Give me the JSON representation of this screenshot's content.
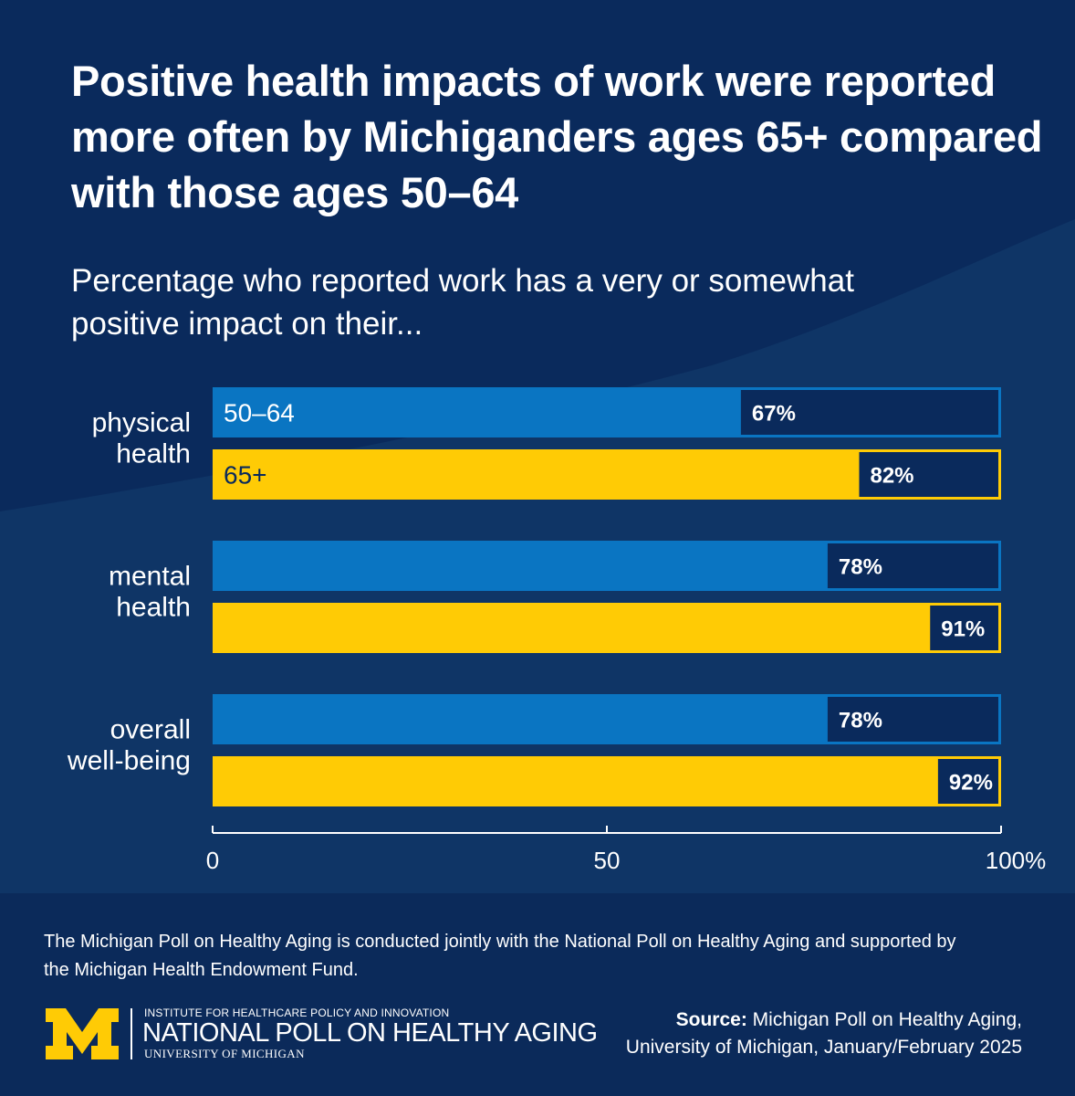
{
  "title": "Positive health impacts of work were reported more often by Michiganders ages 65+ compared with those ages 50–64",
  "subtitle": "Percentage who reported work has a very or somewhat positive impact on their...",
  "colors": {
    "background": "#0a2a5c",
    "series_50_64": "#0a75c2",
    "series_65_plus": "#ffcb05",
    "value_box": "#0a2a5c"
  },
  "chart_data": {
    "type": "bar",
    "orientation": "horizontal",
    "categories": [
      "physical health",
      "mental health",
      "overall well-being"
    ],
    "category_lines": [
      [
        "physical",
        "health"
      ],
      [
        "mental",
        "health"
      ],
      [
        "overall",
        "well-being"
      ]
    ],
    "series": [
      {
        "name": "50–64",
        "values": [
          67,
          78,
          78
        ],
        "labels": [
          "67%",
          "78%",
          "78%"
        ]
      },
      {
        "name": "65+",
        "values": [
          82,
          91,
          92
        ],
        "labels": [
          "82%",
          "91%",
          "92%"
        ]
      }
    ],
    "xlim": [
      0,
      100
    ],
    "xticks": [
      0,
      50,
      100
    ],
    "xtick_labels": [
      "0",
      "50",
      "100%"
    ],
    "grid": false,
    "legend": "inline-in-first-bars"
  },
  "footnote": "The Michigan Poll on Healthy Aging is conducted jointly with the National Poll on Healthy Aging and supported by the Michigan Health Endowment Fund.",
  "logo": {
    "icon": "block-m-logo",
    "line1": "INSTITUTE FOR HEALTHCARE POLICY AND INNOVATION",
    "line2": "NATIONAL POLL ON HEALTHY AGING",
    "line3": "UNIVERSITY OF MICHIGAN"
  },
  "source": {
    "label": "Source:",
    "line1": "Michigan Poll on Healthy Aging,",
    "line2": "University of Michigan, January/February 2025"
  }
}
